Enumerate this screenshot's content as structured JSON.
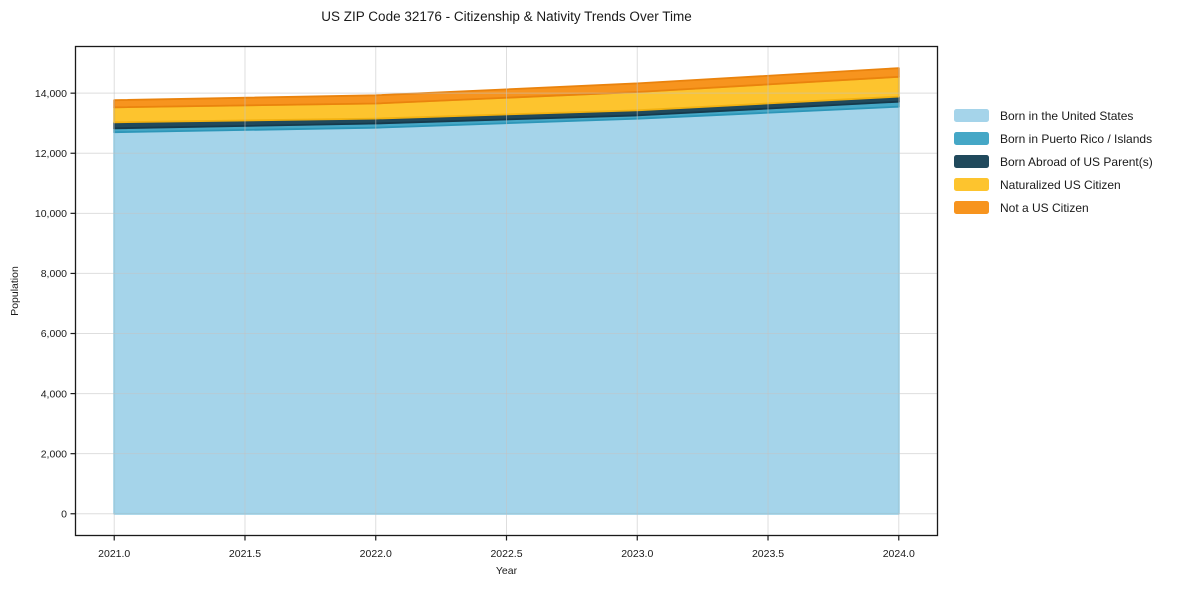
{
  "chart_data": {
    "type": "area",
    "stacked": true,
    "title": "US ZIP Code 32176 - Citizenship & Nativity Trends Over Time",
    "xlabel": "Year",
    "ylabel": "Population",
    "x": [
      2021,
      2022,
      2023,
      2024
    ],
    "series": [
      {
        "name": "Born in the United States",
        "values": [
          12700,
          12850,
          13150,
          13550
        ],
        "fill": "#A5D4EA",
        "edge": "#87CEEB"
      },
      {
        "name": "Born in Puerto Rico / Islands",
        "values": [
          130,
          140,
          110,
          165
        ],
        "fill": "#45A7C6",
        "edge": "#2D96B8"
      },
      {
        "name": "Born Abroad of US Parent(s)",
        "values": [
          200,
          165,
          170,
          170
        ],
        "fill": "#20495C",
        "edge": "#16394B"
      },
      {
        "name": "Naturalized US Citizen",
        "values": [
          500,
          500,
          610,
          660
        ],
        "fill": "#FDC42E",
        "edge": "#F2B110"
      },
      {
        "name": "Not a US Citizen",
        "values": [
          235,
          275,
          285,
          290
        ],
        "fill": "#F7941E",
        "edge": "#EA830D"
      }
    ],
    "xlim": [
      2020.85,
      2024.15
    ],
    "ylim": [
      -740,
      15570
    ],
    "xticks": [
      2021.0,
      2021.5,
      2022.0,
      2022.5,
      2023.0,
      2023.5,
      2024.0
    ],
    "yticks": [
      0,
      2000,
      4000,
      6000,
      8000,
      10000,
      12000,
      14000
    ],
    "grid": true,
    "grid_color": "#DCDCDC",
    "spine_color": "#1A1A1A",
    "tick_label_color": "#1A1A1A",
    "legend_position": "right-outside"
  }
}
